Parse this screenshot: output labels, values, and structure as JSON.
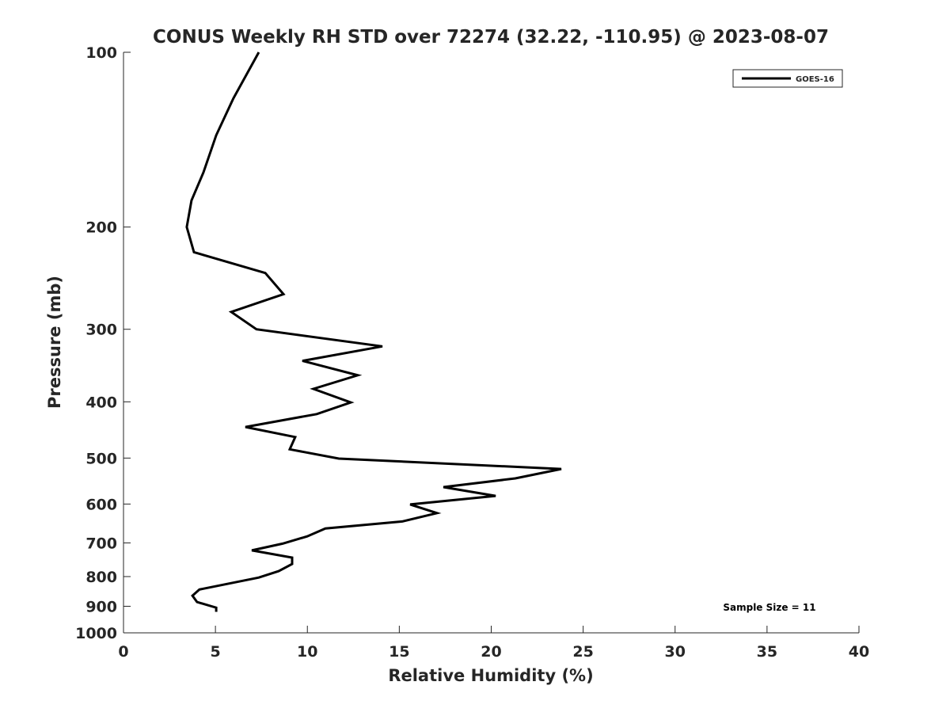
{
  "chart_data": {
    "type": "line",
    "title": "CONUS Weekly RH STD over 72274 (32.22, -110.95) @ 2023-08-07",
    "xlabel": "Relative Humidity (%)",
    "ylabel": "Pressure (mb)",
    "xlim": [
      0,
      40
    ],
    "ylim": [
      100,
      1000
    ],
    "yscale": "log",
    "yreversed": true,
    "grid": false,
    "xticks": [
      0,
      5,
      10,
      15,
      20,
      25,
      30,
      35,
      40
    ],
    "yticks": [
      100,
      200,
      300,
      400,
      500,
      600,
      700,
      800,
      900,
      1000
    ],
    "legend": {
      "placement": "top-right",
      "entries": [
        "GOES-16"
      ]
    },
    "annotation": "Sample Size = 11",
    "series": [
      {
        "name": "GOES-16",
        "color": "#000000",
        "x": [
          7.36,
          5.98,
          5.04,
          4.35,
          3.7,
          3.44,
          3.83,
          7.71,
          8.7,
          5.86,
          7.23,
          14.08,
          9.73,
          12.74,
          10.33,
          12.36,
          10.51,
          6.63,
          9.34,
          9.04,
          11.71,
          23.81,
          21.31,
          17.4,
          20.24,
          15.59,
          17.05,
          15.16,
          10.98,
          9.99,
          8.65,
          6.98,
          9.17,
          9.17,
          8.44,
          7.36,
          4.13,
          3.75,
          4.0,
          5.04,
          5.04
        ],
        "y": [
          100,
          120,
          139,
          161,
          180,
          200,
          221,
          240,
          261,
          280,
          300,
          321,
          340,
          360,
          380,
          401,
          420,
          442,
          460,
          483,
          501,
          522,
          542,
          561,
          581,
          601,
          622,
          643,
          661,
          682,
          702,
          721,
          742,
          761,
          783,
          803,
          842,
          863,
          885,
          905,
          920
        ]
      }
    ]
  }
}
